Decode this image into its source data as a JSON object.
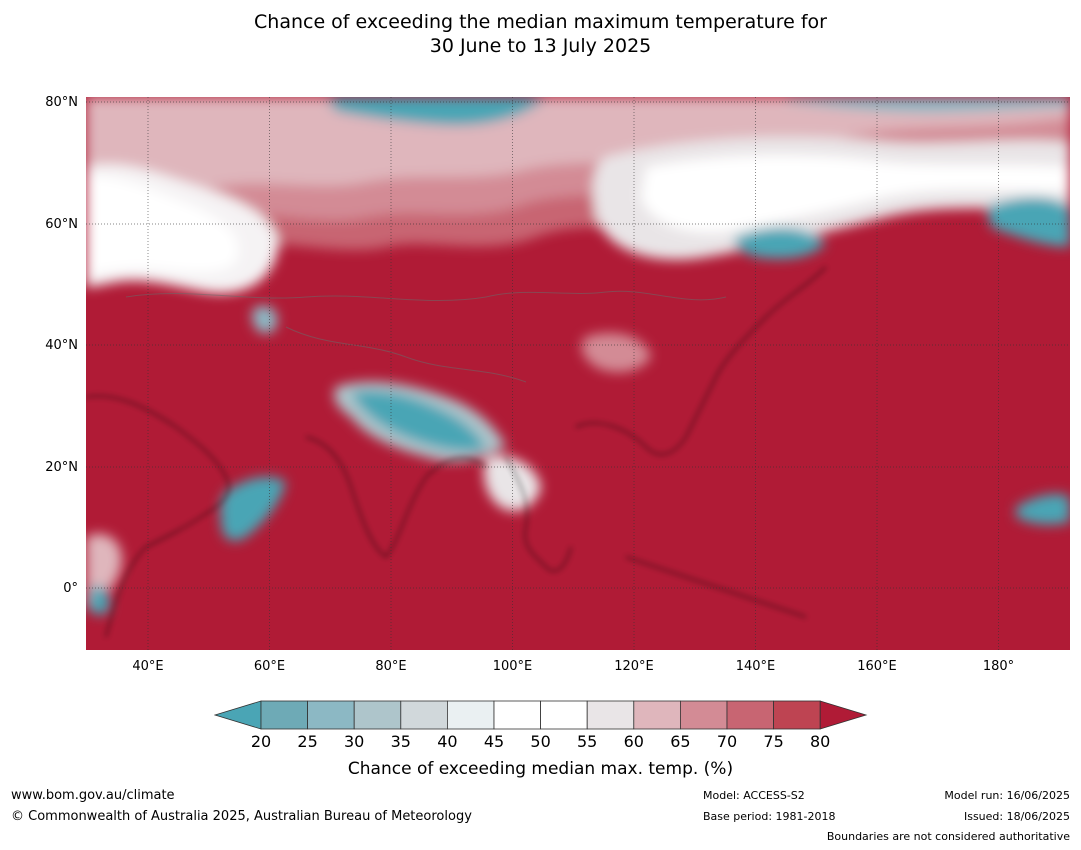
{
  "title": {
    "line1": "Chance of exceeding the median maximum temperature for",
    "line2": "30 June to 13 July 2025"
  },
  "axes": {
    "y_labels": [
      "80°N",
      "60°N",
      "40°N",
      "20°N",
      "0°"
    ],
    "x_labels": [
      "40°E",
      "60°E",
      "80°E",
      "100°E",
      "120°E",
      "140°E",
      "160°E",
      "180°"
    ]
  },
  "colorbar": {
    "ticks": [
      "20",
      "25",
      "30",
      "35",
      "40",
      "45",
      "50",
      "55",
      "60",
      "65",
      "70",
      "75",
      "80"
    ],
    "label": "Chance of exceeding median max. temp. (%)",
    "colors": [
      "#4aa5b5",
      "#6eaab6",
      "#8cb8c4",
      "#aec5cb",
      "#d1d8db",
      "#eaf0f2",
      "#ffffff",
      "#ffffff",
      "#e9e5e7",
      "#dfb6bc",
      "#d38b95",
      "#c86572",
      "#be4452",
      "#b01b36"
    ]
  },
  "footer": {
    "url": "www.bom.gov.au/climate",
    "copyright": "© Commonwealth of Australia 2025, Australian Bureau of Meteorology",
    "model": "Model: ACCESS-S2",
    "base_period": "Base period: 1981-2018",
    "model_run": "Model run: 16/06/2025",
    "issued": "Issued: 18/06/2025",
    "boundaries": "Boundaries are not considered authoritative"
  }
}
